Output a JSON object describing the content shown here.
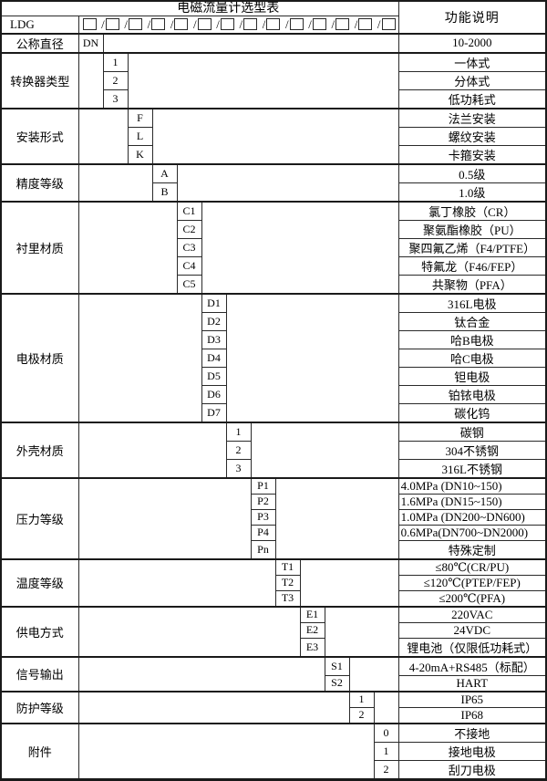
{
  "title": "电磁流量计选型表",
  "desc_header": "功能说明",
  "ldg": {
    "label": "LDG",
    "box_glyph": "□",
    "slot_glyph": "/□",
    "slot_count": 13
  },
  "code_columns": 13,
  "groups": [
    {
      "label": "公称直径",
      "col": 0,
      "rows": [
        {
          "code": "DN",
          "desc": "10-2000"
        }
      ]
    },
    {
      "label": "转换器类型",
      "col": 1,
      "rows": [
        {
          "code": "1",
          "desc": "一体式"
        },
        {
          "code": "2",
          "desc": "分体式"
        },
        {
          "code": "3",
          "desc": "低功耗式"
        }
      ]
    },
    {
      "label": "安装形式",
      "col": 2,
      "rows": [
        {
          "code": "F",
          "desc": "法兰安装"
        },
        {
          "code": "L",
          "desc": "螺纹安装"
        },
        {
          "code": "K",
          "desc": "卡箍安装"
        }
      ]
    },
    {
      "label": "精度等级",
      "col": 3,
      "rows": [
        {
          "code": "A",
          "desc": "0.5级"
        },
        {
          "code": "B",
          "desc": "1.0级"
        }
      ]
    },
    {
      "label": "衬里材质",
      "col": 4,
      "rows": [
        {
          "code": "C1",
          "desc": "氯丁橡胶（CR）"
        },
        {
          "code": "C2",
          "desc": "聚氨酯橡胶（PU）"
        },
        {
          "code": "C3",
          "desc": "聚四氟乙烯（F4/PTFE）"
        },
        {
          "code": "C4",
          "desc": "特氟龙（F46/FEP）"
        },
        {
          "code": "C5",
          "desc": "共聚物（PFA）"
        }
      ]
    },
    {
      "label": "电极材质",
      "col": 5,
      "rows": [
        {
          "code": "D1",
          "desc": "316L电极"
        },
        {
          "code": "D2",
          "desc": "钛合金"
        },
        {
          "code": "D3",
          "desc": "哈B电极"
        },
        {
          "code": "D4",
          "desc": "哈C电极"
        },
        {
          "code": "D5",
          "desc": "钽电极"
        },
        {
          "code": "D6",
          "desc": "铂铱电极"
        },
        {
          "code": "D7",
          "desc": "碳化钨"
        }
      ]
    },
    {
      "label": "外壳材质",
      "col": 6,
      "rows": [
        {
          "code": "1",
          "desc": "碳钢"
        },
        {
          "code": "2",
          "desc": "304不锈钢"
        },
        {
          "code": "3",
          "desc": "316L不锈钢"
        }
      ]
    },
    {
      "label": "压力等级",
      "col": 7,
      "rows": [
        {
          "code": "P1",
          "desc": "4.0MPa (DN10~150)",
          "align": "left"
        },
        {
          "code": "P2",
          "desc": "1.6MPa (DN15~150)",
          "align": "left"
        },
        {
          "code": "P3",
          "desc": "1.0MPa (DN200~DN600)",
          "align": "left"
        },
        {
          "code": "P4",
          "desc": "0.6MPa(DN700~DN2000)",
          "align": "left"
        },
        {
          "code": "Pn",
          "desc": "特殊定制"
        }
      ]
    },
    {
      "label": "温度等级",
      "col": 8,
      "rows": [
        {
          "code": "T1",
          "desc": "≤80℃(CR/PU)"
        },
        {
          "code": "T2",
          "desc": "≤120℃(PTEP/FEP)"
        },
        {
          "code": "T3",
          "desc": "≤200℃(PFA)"
        }
      ]
    },
    {
      "label": "供电方式",
      "col": 9,
      "rows": [
        {
          "code": "E1",
          "desc": "220VAC"
        },
        {
          "code": "E2",
          "desc": "24VDC"
        },
        {
          "code": "E3",
          "desc": "锂电池（仅限低功耗式）"
        }
      ]
    },
    {
      "label": "信号输出",
      "col": 10,
      "rows": [
        {
          "code": "S1",
          "desc": "4-20mA+RS485（标配）"
        },
        {
          "code": "S2",
          "desc": "HART"
        }
      ]
    },
    {
      "label": "防护等级",
      "col": 11,
      "rows": [
        {
          "code": "1",
          "desc": "IP65"
        },
        {
          "code": "2",
          "desc": "IP68"
        }
      ]
    },
    {
      "label": "附件",
      "col": 12,
      "rows": [
        {
          "code": "0",
          "desc": "不接地"
        },
        {
          "code": "1",
          "desc": "接地电极"
        },
        {
          "code": "2",
          "desc": "刮刀电极"
        }
      ]
    }
  ]
}
